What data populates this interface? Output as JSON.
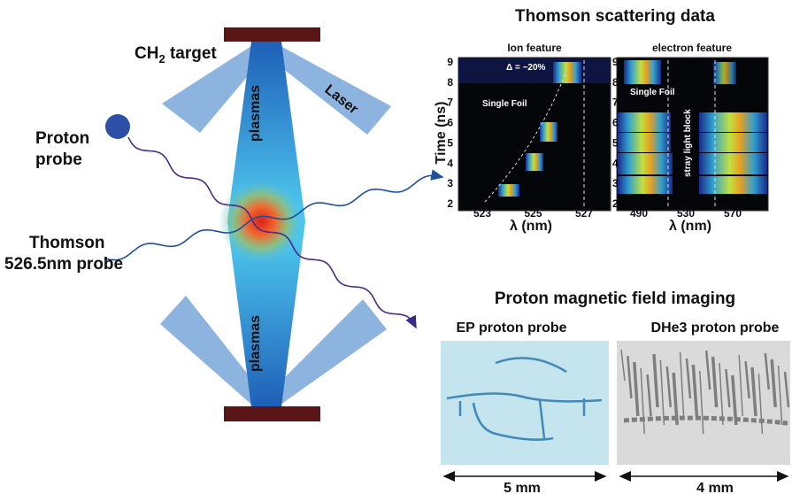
{
  "left": {
    "target": [
      "CH",
      "2",
      " target"
    ],
    "laser": "Laser",
    "plasma_top": "plasmas",
    "plasma_bottom": "plasmas",
    "proton_probe": [
      "Proton",
      "probe"
    ],
    "thomson_probe": [
      "Thomson",
      "526.5nm probe"
    ]
  },
  "thomson": {
    "title": "Thomson scattering data",
    "y_label": "Time (ns)",
    "x_label": "λ (nm)",
    "y_ticks": [
      2,
      3,
      4,
      5,
      6,
      7,
      8,
      9
    ],
    "ion": {
      "title": "Ion feature",
      "x_ticks": [
        523,
        525,
        527
      ],
      "annotations": [
        "Δ = ~20%",
        "Single Foil"
      ]
    },
    "electron": {
      "title": "electron feature",
      "x_ticks": [
        490,
        530,
        570
      ],
      "annotations": [
        "Single Foil",
        "stray light block"
      ]
    }
  },
  "imaging": {
    "title": "Proton magnetic field imaging",
    "panels": [
      {
        "title": "EP proton probe",
        "scale": "5 mm"
      },
      {
        "title": "DHe3 proton probe",
        "scale": "4 mm"
      }
    ]
  }
}
